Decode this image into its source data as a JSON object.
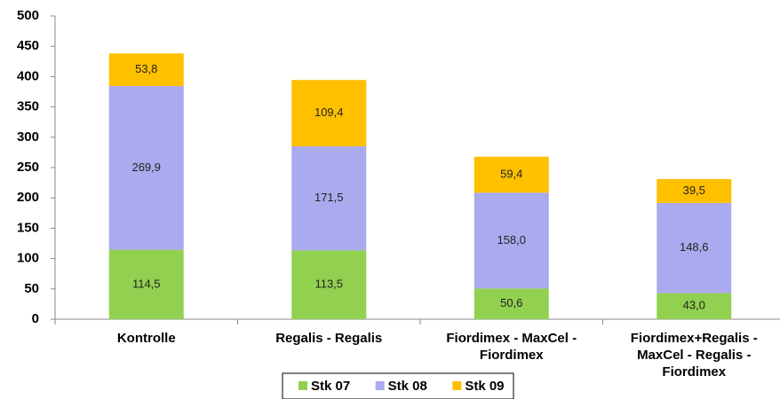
{
  "chart_data": {
    "type": "stacked-bar",
    "categories": [
      "Kontrolle",
      "Regalis - Regalis",
      "Fiordimex - MaxCel - Fiordimex",
      "Fiordimex+Regalis - MaxCel - Regalis - Fiordimex"
    ],
    "series": [
      {
        "name": "Stk 07",
        "color": "#92d050",
        "values": [
          114.5,
          113.5,
          50.6,
          43.0
        ],
        "value_labels": [
          "114,5",
          "113,5",
          "50,6",
          "43,0"
        ]
      },
      {
        "name": "Stk 08",
        "color": "#aaaaee",
        "values": [
          269.9,
          171.5,
          158.0,
          148.6
        ],
        "value_labels": [
          "269,9",
          "171,5",
          "158,0",
          "148,6"
        ]
      },
      {
        "name": "Stk 09",
        "color": "#ffc000",
        "values": [
          53.8,
          109.4,
          59.4,
          39.5
        ],
        "value_labels": [
          "53,8",
          "109,4",
          "59,4",
          "39,5"
        ]
      }
    ],
    "ylim": [
      0,
      500
    ],
    "yticks": [
      0,
      50,
      100,
      150,
      200,
      250,
      300,
      350,
      400,
      450,
      500
    ],
    "legend": "bottom"
  }
}
